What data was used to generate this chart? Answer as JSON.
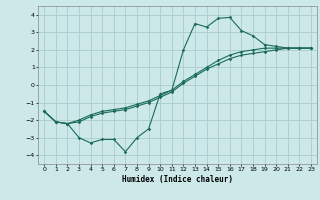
{
  "xlabel": "Humidex (Indice chaleur)",
  "bg_color": "#cce8e8",
  "grid_color": "#aacccc",
  "line_color": "#1a6b5a",
  "xlim": [
    -0.5,
    23.5
  ],
  "ylim": [
    -4.5,
    4.5
  ],
  "xticks": [
    0,
    1,
    2,
    3,
    4,
    5,
    6,
    7,
    8,
    9,
    10,
    11,
    12,
    13,
    14,
    15,
    16,
    17,
    18,
    19,
    20,
    21,
    22,
    23
  ],
  "yticks": [
    -4,
    -3,
    -2,
    -1,
    0,
    1,
    2,
    3,
    4
  ],
  "line1_x": [
    0,
    1,
    2,
    3,
    4,
    5,
    6,
    7,
    8,
    9,
    10,
    11,
    12,
    13,
    14,
    15,
    16,
    17,
    18,
    19,
    20,
    21,
    22,
    23
  ],
  "line1_y": [
    -1.5,
    -2.1,
    -2.2,
    -3.0,
    -3.3,
    -3.1,
    -3.1,
    -3.8,
    -3.0,
    -2.5,
    -0.5,
    -0.3,
    2.0,
    3.5,
    3.3,
    3.8,
    3.85,
    3.1,
    2.8,
    2.3,
    2.2,
    2.1,
    2.1,
    2.1
  ],
  "line2_x": [
    0,
    1,
    2,
    3,
    4,
    5,
    6,
    7,
    8,
    9,
    10,
    11,
    12,
    13,
    14,
    15,
    16,
    17,
    18,
    19,
    20,
    21,
    22,
    23
  ],
  "line2_y": [
    -1.5,
    -2.1,
    -2.2,
    -2.1,
    -1.8,
    -1.6,
    -1.5,
    -1.4,
    -1.2,
    -1.0,
    -0.7,
    -0.4,
    0.1,
    0.5,
    0.9,
    1.2,
    1.5,
    1.7,
    1.8,
    1.9,
    2.0,
    2.1,
    2.1,
    2.1
  ],
  "line3_x": [
    0,
    1,
    2,
    3,
    4,
    5,
    6,
    7,
    8,
    9,
    10,
    11,
    12,
    13,
    14,
    15,
    16,
    17,
    18,
    19,
    20,
    21,
    22,
    23
  ],
  "line3_y": [
    -1.5,
    -2.1,
    -2.2,
    -2.0,
    -1.7,
    -1.5,
    -1.4,
    -1.3,
    -1.1,
    -0.9,
    -0.6,
    -0.3,
    0.2,
    0.6,
    1.0,
    1.4,
    1.7,
    1.9,
    2.0,
    2.1,
    2.1,
    2.1,
    2.1,
    2.1
  ]
}
